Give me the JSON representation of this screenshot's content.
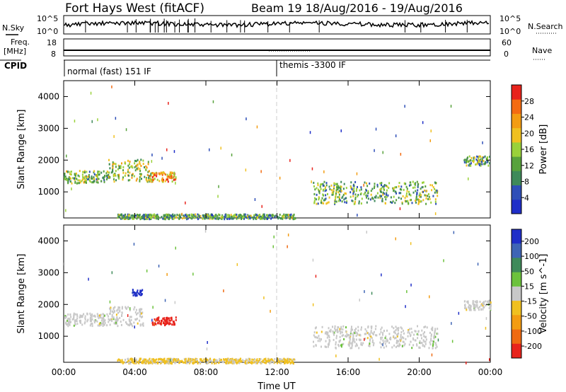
{
  "header": {
    "title": "Fort Hays West (fitACF)",
    "beam_info": "Beam 19  18/Aug/2016 - 19/Aug/2016"
  },
  "strip_labels": {
    "nsky": "N.Sky",
    "nsearch": "N.Search",
    "freq_line1": "Freq.",
    "freq_line2": "[MHz]",
    "nave": "Nave",
    "cpid": "CPID",
    "sky_tick_top": "10^5",
    "sky_tick_bottom": "10^0",
    "search_tick_top": "10^5",
    "search_tick_bottom": "10^0",
    "freq_tick_top": "18",
    "freq_tick_bottom": "8",
    "nave_tick_top": "60",
    "nave_tick_bottom": "0"
  },
  "cpid_labels": {
    "first": "normal (fast) 151 IF",
    "second": "themis -3300 IF"
  },
  "colors": {
    "power": [
      "#1f2ec8",
      "#2f4fb8",
      "#3f8a5a",
      "#58a23c",
      "#9ad13a",
      "#f0c020",
      "#f39c12",
      "#f36b12",
      "#e8231c"
    ],
    "velocity": [
      "#1f2ec8",
      "#3f65b5",
      "#3f8a5a",
      "#6cc23c",
      "#c8c8c8",
      "#f0c020",
      "#f39c12",
      "#ef6a12",
      "#e8231c"
    ]
  },
  "chart_data": [
    {
      "type": "heatmap",
      "panel": "power",
      "xlabel": "",
      "ylabel": "Slant Range [km]",
      "xlim": [
        0,
        24
      ],
      "ylim": [
        180,
        4500
      ],
      "x_ticks": [
        "00:00",
        "04:00",
        "08:00",
        "12:00",
        "16:00",
        "20:00",
        "00:00"
      ],
      "y_ticks": [
        "1000",
        "2000",
        "3000",
        "4000"
      ],
      "colorbar": {
        "label": "Power [dB]",
        "ticks": [
          "4",
          "8",
          "12",
          "16",
          "20",
          "24",
          "28"
        ],
        "range": [
          0,
          30
        ]
      },
      "regions": [
        {
          "time_start": 0.0,
          "time_end": 2.5,
          "range_center": 1500,
          "range_width": 400,
          "level": 0.45
        },
        {
          "time_start": 2.5,
          "time_end": 4.8,
          "range_center": 1700,
          "range_width": 700,
          "level": 0.5
        },
        {
          "time_start": 4.8,
          "time_end": 6.3,
          "range_center": 1500,
          "range_width": 300,
          "level": 0.7
        },
        {
          "time_start": 3.0,
          "time_end": 13.0,
          "range_center": 250,
          "range_width": 150,
          "level": 0.35
        },
        {
          "time_start": 14.0,
          "time_end": 21.0,
          "range_center": 1000,
          "range_width": 700,
          "level": 0.4
        },
        {
          "time_start": 22.5,
          "time_end": 24.0,
          "range_center": 2000,
          "range_width": 300,
          "level": 0.4
        }
      ]
    },
    {
      "type": "heatmap",
      "panel": "velocity",
      "xlabel": "Time UT",
      "ylabel": "Slant Range [km]",
      "xlim": [
        0,
        24
      ],
      "ylim": [
        180,
        4500
      ],
      "x_ticks": [
        "00:00",
        "04:00",
        "08:00",
        "12:00",
        "16:00",
        "20:00",
        "00:00"
      ],
      "y_ticks": [
        "1000",
        "2000",
        "3000",
        "4000"
      ],
      "colorbar": {
        "label": "Velocity [m s^-1]",
        "ticks": [
          "200",
          "100",
          "50",
          "15",
          "-15",
          "-50",
          "-100",
          "-200"
        ],
        "range": [
          250,
          -250
        ]
      },
      "regions": [
        {
          "time_start": 0.0,
          "time_end": 2.5,
          "range_center": 1550,
          "range_width": 400,
          "level": 0.0
        },
        {
          "time_start": 2.5,
          "time_end": 4.5,
          "range_center": 1650,
          "range_width": 600,
          "level": 0.0
        },
        {
          "time_start": 3.8,
          "time_end": 4.4,
          "range_center": 2400,
          "range_width": 200,
          "level": 220
        },
        {
          "time_start": 4.9,
          "time_end": 6.3,
          "range_center": 1500,
          "range_width": 250,
          "level": -220
        },
        {
          "time_start": 3.0,
          "time_end": 13.0,
          "range_center": 250,
          "range_width": 150,
          "level": -40
        },
        {
          "time_start": 14.0,
          "time_end": 21.0,
          "range_center": 1000,
          "range_width": 700,
          "level": 0.0
        },
        {
          "time_start": 22.5,
          "time_end": 24.0,
          "range_center": 2000,
          "range_width": 300,
          "level": 0.0
        }
      ]
    }
  ]
}
